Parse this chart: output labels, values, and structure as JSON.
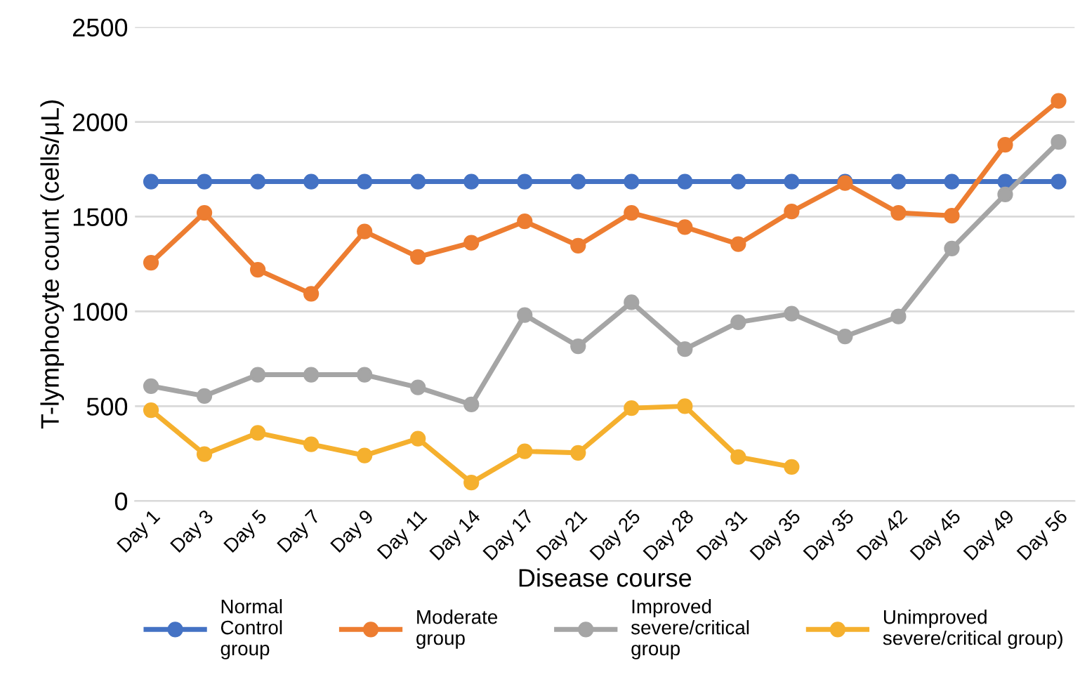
{
  "chart_data": {
    "type": "line",
    "xlabel": "Disease course",
    "ylabel": "T-lymphocyte count (cells/μL)",
    "categories": [
      "Day 1",
      "Day 3",
      "Day 5",
      "Day 7",
      "Day 9",
      "Day 11",
      "Day 14",
      "Day 17",
      "Day 21",
      "Day 25",
      "Day 28",
      "Day 31",
      "Day 35",
      "Day 35",
      "Day 42",
      "Day 45",
      "Day 49",
      "Day 56"
    ],
    "ylim": [
      0,
      2500
    ],
    "yticks": [
      0,
      500,
      1000,
      1500,
      2000,
      2500
    ],
    "grid": "y",
    "legend": "bottom",
    "marker": "circle",
    "line_style": "solid",
    "series": [
      {
        "name": "Normal\nControl\ngroup",
        "color": "#4472c4",
        "values": [
          1685,
          1685,
          1685,
          1685,
          1685,
          1685,
          1685,
          1685,
          1685,
          1685,
          1685,
          1685,
          1685,
          1685,
          1685,
          1685,
          1685,
          1685
        ]
      },
      {
        "name": "Moderate\ngroup",
        "color": "#ed7d31",
        "values": [
          1257,
          1520,
          1220,
          1093,
          1422,
          1287,
          1362,
          1475,
          1347,
          1520,
          1445,
          1355,
          1527,
          1677,
          1520,
          1505,
          1879,
          2111
        ]
      },
      {
        "name": "Improved\nsevere/critical\ngroup",
        "color": "#a5a5a5",
        "values": [
          606,
          554,
          666,
          666,
          666,
          599,
          509,
          981,
          816,
          1048,
          801,
          943,
          988,
          868,
          973,
          1332,
          1617,
          1894
        ]
      },
      {
        "name": "Unimproved\nsevere/critical group)",
        "color": "#f5b02e",
        "values": [
          479,
          247,
          359,
          299,
          240,
          329,
          97,
          262,
          254,
          490,
          500,
          232,
          180,
          null,
          null,
          null,
          null,
          null
        ]
      }
    ]
  }
}
